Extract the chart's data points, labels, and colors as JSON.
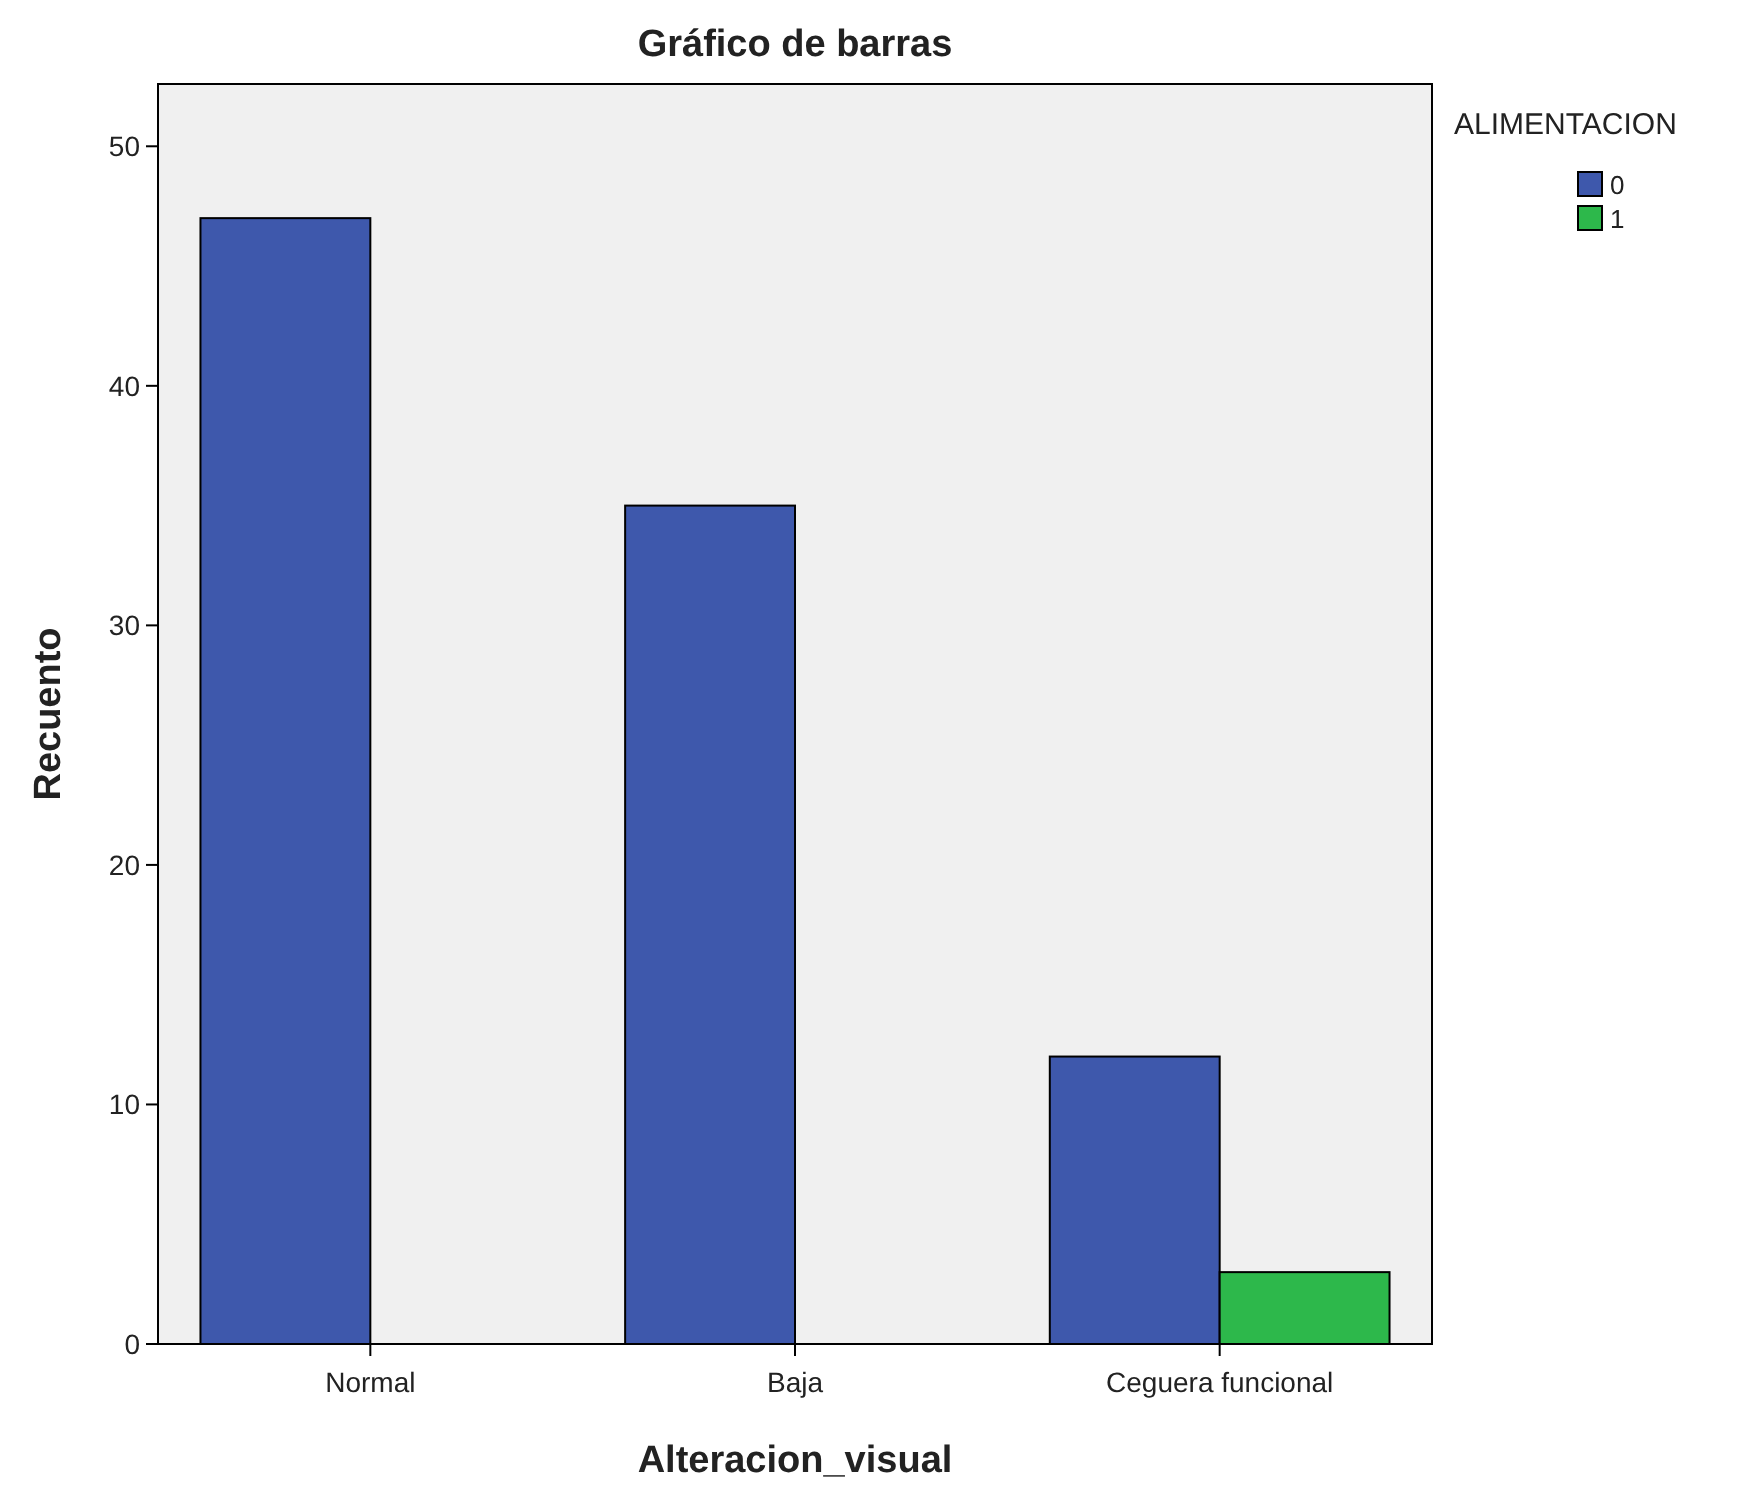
{
  "chart_data": {
    "type": "bar",
    "title": "Gráfico de barras",
    "xlabel": "Alteracion_visual",
    "ylabel": "Recuento",
    "legend_title": "ALIMENTACION",
    "categories": [
      "Normal",
      "Baja",
      "Ceguera funcional"
    ],
    "series": [
      {
        "name": "0",
        "color": "#3e58ac",
        "values": [
          47,
          35,
          12
        ]
      },
      {
        "name": "1",
        "color": "#2db84b",
        "values": [
          null,
          null,
          3
        ]
      }
    ],
    "ylim": [
      0,
      52.6
    ],
    "yticks": [
      0,
      10,
      20,
      30,
      40,
      50
    ],
    "grid": false,
    "legend": "top right"
  }
}
